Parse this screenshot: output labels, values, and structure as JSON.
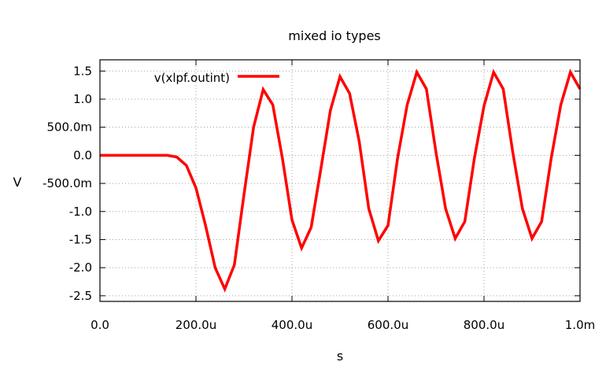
{
  "chart_data": {
    "type": "line",
    "title": "mixed io types",
    "xlabel": "s",
    "ylabel": "V",
    "xlim": [
      0,
      0.001
    ],
    "ylim": [
      -2.6,
      1.7
    ],
    "grid": true,
    "legend_position": "top-left",
    "x_tick_values": [
      0,
      0.0002,
      0.0004,
      0.0006,
      0.0008,
      0.001
    ],
    "x_tick_labels": [
      "0.0",
      "200.0u",
      "400.0u",
      "600.0u",
      "800.0u",
      "1.0m"
    ],
    "y_tick_values": [
      1.5,
      1.0,
      0.5,
      0.0,
      -0.5,
      -1.0,
      -1.5,
      -2.0,
      -2.5
    ],
    "y_tick_labels": [
      "1.5",
      "1.0",
      "500.0m",
      "0.0",
      "-500.0m",
      "-1.0",
      "-1.5",
      "-2.0",
      "-2.5"
    ],
    "series": [
      {
        "name": "v(xlpf.outint)",
        "color": "#ff0000",
        "x": [
          0,
          2e-05,
          4e-05,
          6e-05,
          8e-05,
          0.0001,
          0.00012,
          0.00014,
          0.00016,
          0.00018,
          0.0002,
          0.00022,
          0.00024,
          0.00026,
          0.00028,
          0.0003,
          0.00032,
          0.00034,
          0.00036,
          0.00038,
          0.0004,
          0.00042,
          0.00044,
          0.00046,
          0.00048,
          0.0005,
          0.00052,
          0.00054,
          0.00056,
          0.00058,
          0.0006,
          0.00062,
          0.00064,
          0.00066,
          0.00068,
          0.0007,
          0.00072,
          0.00074,
          0.00076,
          0.00078,
          0.0008,
          0.00082,
          0.00084,
          0.00086,
          0.00088,
          0.0009,
          0.00092,
          0.00094,
          0.00096,
          0.00098,
          0.001
        ],
        "values": [
          0,
          0,
          0,
          0,
          0,
          0,
          0,
          0,
          -0.03,
          -0.18,
          -0.58,
          -1.25,
          -2.0,
          -2.38,
          -1.95,
          -0.7,
          0.5,
          1.17,
          0.9,
          -0.05,
          -1.15,
          -1.65,
          -1.28,
          -0.25,
          0.8,
          1.4,
          1.1,
          0.25,
          -0.95,
          -1.52,
          -1.25,
          -0.05,
          0.9,
          1.48,
          1.18,
          0.05,
          -0.95,
          -1.48,
          -1.18,
          -0.05,
          0.88,
          1.48,
          1.18,
          0.05,
          -0.95,
          -1.48,
          -1.18,
          -0.05,
          0.9,
          1.48,
          1.18
        ]
      }
    ]
  }
}
